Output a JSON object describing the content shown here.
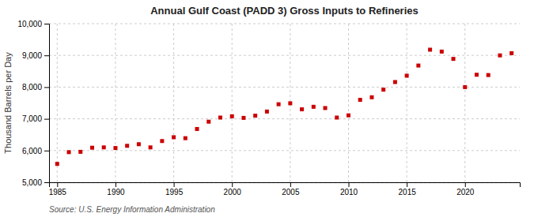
{
  "chart_data": {
    "type": "scatter",
    "title": "Annual Gulf Coast (PADD 3) Gross Inputs to Refineries",
    "ylabel": "Thousand Barrels per Day",
    "source": "Source: U.S. Energy Information Administration",
    "x": [
      1985,
      1986,
      1987,
      1988,
      1989,
      1990,
      1991,
      1992,
      1993,
      1994,
      1995,
      1996,
      1997,
      1998,
      1999,
      2000,
      2001,
      2002,
      2003,
      2004,
      2005,
      2006,
      2007,
      2008,
      2009,
      2010,
      2011,
      2012,
      2013,
      2014,
      2015,
      2016,
      2017,
      2018,
      2019,
      2020,
      2021,
      2022,
      2023,
      2024
    ],
    "values": [
      5580,
      5950,
      5960,
      6090,
      6100,
      6080,
      6150,
      6200,
      6100,
      6300,
      6420,
      6390,
      6680,
      6910,
      7040,
      7080,
      7030,
      7100,
      7230,
      7460,
      7490,
      7300,
      7380,
      7340,
      7040,
      7110,
      7600,
      7680,
      7920,
      8160,
      8360,
      8680,
      9180,
      9120,
      8890,
      8000,
      8390,
      8380,
      9000,
      9070
    ],
    "color": "#cc0000",
    "marker": "square",
    "xlim": [
      1984.3,
      2024.7
    ],
    "xticks": [
      1985,
      1990,
      1995,
      2000,
      2005,
      2010,
      2015,
      2020
    ],
    "ylim": [
      5000,
      10000
    ],
    "yticks": [
      {
        "value": 5000,
        "label": "5,000"
      },
      {
        "value": 6000,
        "label": "6,000"
      },
      {
        "value": 7000,
        "label": "7,000"
      },
      {
        "value": 8000,
        "label": "8,000"
      },
      {
        "value": 9000,
        "label": "9,000"
      },
      {
        "value": 10000,
        "label": "10,000"
      }
    ],
    "grid": true
  }
}
